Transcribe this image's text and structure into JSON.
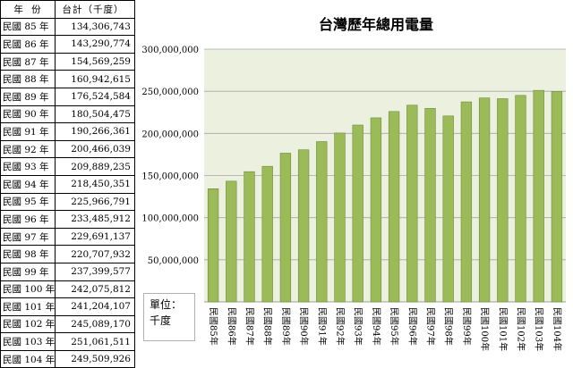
{
  "table": {
    "header_year": "年 份",
    "header_value": "台計（千度）",
    "rows": [
      {
        "year": "民國 85 年",
        "value": "134,306,743"
      },
      {
        "year": "民國 86 年",
        "value": "143,290,774"
      },
      {
        "year": "民國 87 年",
        "value": "154,569,259"
      },
      {
        "year": "民國 88 年",
        "value": "160,942,615"
      },
      {
        "year": "民國 89 年",
        "value": "176,524,584"
      },
      {
        "year": "民國 90 年",
        "value": "180,504,475"
      },
      {
        "year": "民國 91 年",
        "value": "190,266,361"
      },
      {
        "year": "民國 92 年",
        "value": "200,466,039"
      },
      {
        "year": "民國 93 年",
        "value": "209,889,235"
      },
      {
        "year": "民國 94 年",
        "value": "218,450,351"
      },
      {
        "year": "民國 95 年",
        "value": "225,966,791"
      },
      {
        "year": "民國 96 年",
        "value": "233,485,912"
      },
      {
        "year": "民國 97 年",
        "value": "229,691,137"
      },
      {
        "year": "民國 98 年",
        "value": "220,707,932"
      },
      {
        "year": "民國 99 年",
        "value": "237,399,577"
      },
      {
        "year": "民國 100 年",
        "value": "242,075,812"
      },
      {
        "year": "民國 101 年",
        "value": "241,204,107"
      },
      {
        "year": "民國 102 年",
        "value": "245,089,170"
      },
      {
        "year": "民國 103 年",
        "value": "251,061,511"
      },
      {
        "year": "民國 104 年",
        "value": "249,509,926"
      }
    ]
  },
  "unit_box": {
    "line1": "單位：",
    "line2": "千度"
  },
  "chart_data": {
    "type": "bar",
    "title": "台灣歷年總用電量",
    "xlabel": "",
    "ylabel": "",
    "categories": [
      "民國85年",
      "民國86年",
      "民國87年",
      "民國88年",
      "民國89年",
      "民國90年",
      "民國91年",
      "民國92年",
      "民國93年",
      "民國94年",
      "民國95年",
      "民國96年",
      "民國97年",
      "民國98年",
      "民國99年",
      "民國100年",
      "民國101年",
      "民國102年",
      "民國103年",
      "民國104年"
    ],
    "values": [
      134306743,
      143290774,
      154569259,
      160942615,
      176524584,
      180504475,
      190266361,
      200466039,
      209889235,
      218450351,
      225966791,
      233485912,
      229691137,
      220707932,
      237399577,
      242075812,
      241204107,
      245089170,
      251061511,
      249509926
    ],
    "ylim": [
      0,
      300000000
    ],
    "yticks": [
      50000000,
      100000000,
      150000000,
      200000000,
      250000000,
      300000000
    ],
    "ytick_labels": [
      "50,000,000",
      "100,000,000",
      "150,000,000",
      "200,000,000",
      "250,000,000",
      "300,000,000"
    ],
    "grid": true,
    "legend": "none",
    "bar_color": "#9bbb59",
    "bar_edge_color": "#71893f",
    "plot_background": "#ebf1de"
  }
}
